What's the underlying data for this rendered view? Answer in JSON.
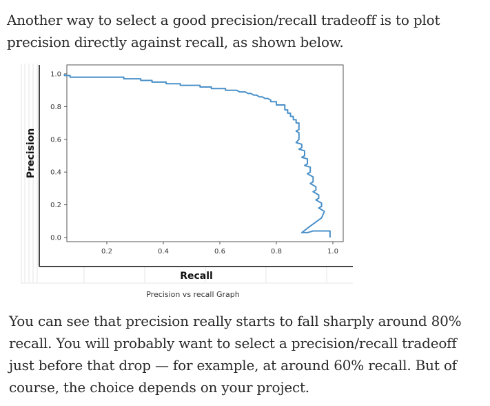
{
  "article": {
    "intro_text": "Another way to select a good precision/recall tradeoff is to plot precision directly against recall, as shown below.",
    "outro_text": "You can see that precision really starts to fall sharply around 80% recall. You will probably want to select a precision/recall tradeoff just before that drop — for example, at around 60% recall. But of course, the choice depends on your project."
  },
  "figure": {
    "caption": "Precision vs recall Graph"
  },
  "chart_data": {
    "type": "line",
    "xlabel": "Recall",
    "ylabel": "Precision",
    "xlim": [
      0.0,
      1.0
    ],
    "ylim": [
      0.0,
      1.0
    ],
    "x_ticks": [
      "0.2",
      "0.4",
      "0.6",
      "0.8",
      "1.0"
    ],
    "x_tick_values": [
      0.2,
      0.4,
      0.6,
      0.8,
      1.0
    ],
    "y_ticks": [
      "0.0",
      "0.2",
      "0.4",
      "0.6",
      "0.8",
      "1.0"
    ],
    "y_tick_values": [
      0.0,
      0.2,
      0.4,
      0.6,
      0.8,
      1.0
    ],
    "grid": false,
    "line_color": "#4a90c8",
    "series": [
      {
        "x": [
          0.05,
          0.05,
          0.07,
          0.07,
          0.08,
          0.26,
          0.26,
          0.32,
          0.32,
          0.36,
          0.36,
          0.41,
          0.41,
          0.46,
          0.46,
          0.53,
          0.53,
          0.57,
          0.57,
          0.62,
          0.62,
          0.66,
          0.67,
          0.69,
          0.7,
          0.71,
          0.72,
          0.73,
          0.74,
          0.75,
          0.76,
          0.77,
          0.78,
          0.78,
          0.8,
          0.8,
          0.83,
          0.83,
          0.84,
          0.84,
          0.85,
          0.85,
          0.86,
          0.86,
          0.87,
          0.87,
          0.88,
          0.88,
          0.87,
          0.88,
          0.88,
          0.87,
          0.89,
          0.89,
          0.88,
          0.9,
          0.9,
          0.89,
          0.91,
          0.91,
          0.9,
          0.92,
          0.92,
          0.91,
          0.93,
          0.93,
          0.92,
          0.94,
          0.94,
          0.93,
          0.95,
          0.95,
          0.94,
          0.96,
          0.96,
          0.95,
          0.97,
          0.96,
          0.92,
          0.89,
          0.91,
          0.93,
          0.94,
          0.99,
          0.99
        ],
        "y": [
          1.0,
          0.99,
          0.99,
          0.98,
          0.98,
          0.98,
          0.97,
          0.97,
          0.96,
          0.96,
          0.95,
          0.95,
          0.94,
          0.94,
          0.93,
          0.93,
          0.92,
          0.92,
          0.91,
          0.91,
          0.9,
          0.9,
          0.89,
          0.89,
          0.88,
          0.88,
          0.87,
          0.87,
          0.86,
          0.86,
          0.85,
          0.85,
          0.84,
          0.83,
          0.83,
          0.81,
          0.81,
          0.78,
          0.78,
          0.76,
          0.76,
          0.74,
          0.74,
          0.72,
          0.72,
          0.7,
          0.7,
          0.66,
          0.65,
          0.64,
          0.6,
          0.58,
          0.57,
          0.55,
          0.54,
          0.53,
          0.5,
          0.49,
          0.48,
          0.45,
          0.44,
          0.43,
          0.4,
          0.39,
          0.37,
          0.34,
          0.33,
          0.31,
          0.29,
          0.28,
          0.26,
          0.24,
          0.23,
          0.21,
          0.19,
          0.18,
          0.16,
          0.12,
          0.07,
          0.03,
          0.03,
          0.04,
          0.04,
          0.04,
          0.0
        ]
      }
    ]
  }
}
